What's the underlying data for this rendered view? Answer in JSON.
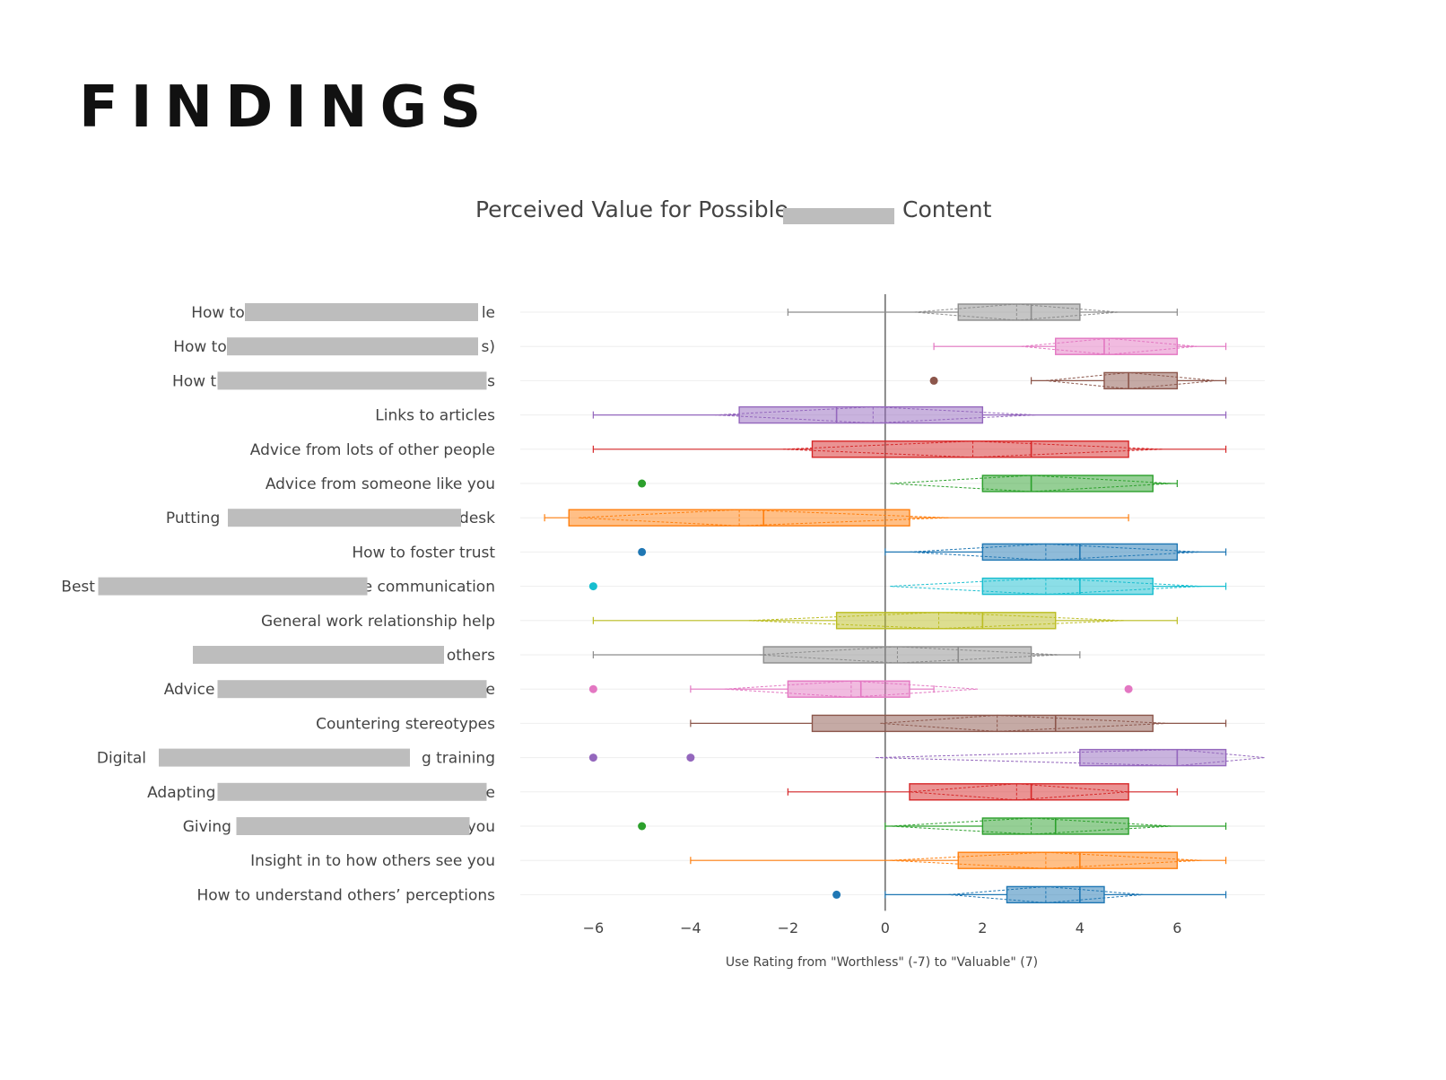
{
  "page": {
    "heading": "FINDINGS"
  },
  "colors": {
    "gray": "#8c8c8c",
    "pink": "#e377c2",
    "brown": "#8c564b",
    "purple": "#9467bd",
    "red": "#d62728",
    "green": "#2ca02c",
    "orange": "#ff7f0e",
    "blue": "#1f77b4",
    "cyan": "#17becf",
    "olive": "#bcbd22",
    "redaction": "#bdbdbd"
  },
  "chart_data": {
    "type": "box",
    "orientation": "horizontal",
    "title": {
      "before": "Perceived Value for Possible",
      "after": "Content"
    },
    "xlabel": "Use Rating from \"Worthless\" (-7) to \"Valuable\" (7)",
    "xlim": [
      -7.5,
      7.8
    ],
    "xticks": [
      -6,
      -4,
      -2,
      0,
      2,
      4,
      6
    ],
    "xtick_labels": [
      "−6",
      "−4",
      "−2",
      "0",
      "2",
      "4",
      "6"
    ],
    "zero_line": true,
    "grid": "horizontal",
    "notched": true,
    "mean_shown": true,
    "series": [
      {
        "label": "How to",
        "label_end": "le",
        "redacted": true,
        "color": "gray",
        "whisker_low": -2,
        "q1": 1.5,
        "median": 3,
        "q3": 4,
        "whisker_high": 6,
        "mean": 2.7,
        "notch_low": 0.6,
        "notch_high": 4.8,
        "outliers": []
      },
      {
        "label": "How to",
        "label_end": "s)",
        "redacted": true,
        "color": "pink",
        "whisker_low": 1,
        "q1": 3.5,
        "median": 4.5,
        "q3": 6,
        "whisker_high": 7,
        "mean": 4.6,
        "notch_low": 2.8,
        "notch_high": 6.4,
        "outliers": []
      },
      {
        "label": "How t",
        "label_end": "s",
        "redacted": true,
        "color": "brown",
        "whisker_low": 3,
        "q1": 4.5,
        "median": 5,
        "q3": 6,
        "whisker_high": 7,
        "mean": 5,
        "notch_low": 3.3,
        "notch_high": 6.8,
        "outliers": [
          1
        ]
      },
      {
        "label": "Links to articles",
        "label_end": "",
        "redacted": false,
        "color": "purple",
        "whisker_low": -6,
        "q1": -3,
        "median": -1,
        "q3": 2,
        "whisker_high": 7,
        "mean": -0.25,
        "notch_low": -3.5,
        "notch_high": 3.1,
        "outliers": []
      },
      {
        "label": "Advice from lots of other people",
        "label_end": "",
        "redacted": false,
        "color": "red",
        "whisker_low": -6,
        "q1": -1.5,
        "median": 3,
        "q3": 5,
        "whisker_high": 7,
        "mean": 1.8,
        "notch_low": -2.1,
        "notch_high": 5.7,
        "outliers": []
      },
      {
        "label": "Advice from someone like you",
        "label_end": "",
        "redacted": false,
        "color": "green",
        "whisker_low": 2,
        "q1": 2,
        "median": 3,
        "q3": 5.5,
        "whisker_high": 6,
        "mean": 3,
        "notch_low": 0.1,
        "notch_high": 5.9,
        "outliers": [
          -5
        ]
      },
      {
        "label": "Putting",
        "label_end": "desk",
        "redacted": true,
        "color": "orange",
        "whisker_low": -7,
        "q1": -6.5,
        "median": -2.5,
        "q3": 0.5,
        "whisker_high": 5,
        "mean": -3,
        "notch_low": -6.3,
        "notch_high": 1.3,
        "outliers": []
      },
      {
        "label": "How to foster trust",
        "label_end": "",
        "redacted": false,
        "color": "blue",
        "whisker_low": 0,
        "q1": 2,
        "median": 4,
        "q3": 6,
        "whisker_high": 7,
        "mean": 3.3,
        "notch_low": 0.5,
        "notch_high": 6.5,
        "outliers": [
          -5
        ]
      },
      {
        "label": "Best",
        "label_end": "e communication",
        "redacted": true,
        "color": "cyan",
        "whisker_low": 2,
        "q1": 2,
        "median": 4,
        "q3": 5.5,
        "whisker_high": 7,
        "mean": 3.3,
        "notch_low": 0.1,
        "notch_high": 6.5,
        "outliers": [
          -6
        ]
      },
      {
        "label": "General work relationship help",
        "label_end": "",
        "redacted": false,
        "color": "olive",
        "whisker_low": -6,
        "q1": -1,
        "median": 2,
        "q3": 3.5,
        "whisker_high": 6,
        "mean": 1.1,
        "notch_low": -2.8,
        "notch_high": 4.9,
        "outliers": []
      },
      {
        "label": "",
        "label_end": "others",
        "redacted": true,
        "color": "gray",
        "whisker_low": -6,
        "q1": -2.5,
        "median": 1.5,
        "q3": 3,
        "whisker_high": 4,
        "mean": 0.25,
        "notch_low": -2.6,
        "notch_high": 3.6,
        "outliers": []
      },
      {
        "label": "Advice",
        "label_end": "e",
        "redacted": true,
        "color": "pink",
        "whisker_low": -4,
        "q1": -2,
        "median": -0.5,
        "q3": 0.5,
        "whisker_high": 1,
        "mean": -0.7,
        "notch_low": -3.3,
        "notch_high": 1.9,
        "outliers": [
          -6,
          5
        ]
      },
      {
        "label": "Countering stereotypes",
        "label_end": "",
        "redacted": false,
        "color": "brown",
        "whisker_low": -4,
        "q1": -1.5,
        "median": 3.5,
        "q3": 5.5,
        "whisker_high": 7,
        "mean": 2.3,
        "notch_low": -0.1,
        "notch_high": 5.8,
        "outliers": []
      },
      {
        "label": "Digital",
        "label_end": "g training",
        "redacted": true,
        "color": "purple",
        "whisker_low": 4,
        "q1": 4,
        "median": 6,
        "q3": 7,
        "whisker_high": 7,
        "mean": 6,
        "notch_low": -0.2,
        "notch_high": 7.8,
        "outliers": [
          -6,
          -4
        ]
      },
      {
        "label": "Adapting",
        "label_end": "e",
        "redacted": true,
        "color": "red",
        "whisker_low": -2,
        "q1": 0.5,
        "median": 3,
        "q3": 5,
        "whisker_high": 6,
        "mean": 2.7,
        "notch_low": 0.5,
        "notch_high": 5,
        "outliers": []
      },
      {
        "label": "Giving",
        "label_end": "you",
        "redacted": true,
        "color": "green",
        "whisker_low": 0,
        "q1": 2,
        "median": 3.5,
        "q3": 5,
        "whisker_high": 7,
        "mean": 3,
        "notch_low": 0.1,
        "notch_high": 5.9,
        "outliers": [
          -5
        ]
      },
      {
        "label": "Insight in to how others see you",
        "label_end": "",
        "redacted": false,
        "color": "orange",
        "whisker_low": -4,
        "q1": 1.5,
        "median": 4,
        "q3": 6,
        "whisker_high": 7,
        "mean": 3.3,
        "notch_low": 0.1,
        "notch_high": 6.5,
        "outliers": []
      },
      {
        "label": "How to understand others’ perceptions",
        "label_end": "",
        "redacted": false,
        "color": "blue",
        "whisker_low": 0,
        "q1": 2.5,
        "median": 4,
        "q3": 4.5,
        "whisker_high": 7,
        "mean": 3.3,
        "notch_low": 1.3,
        "notch_high": 5.3,
        "outliers": [
          -1
        ]
      }
    ]
  }
}
